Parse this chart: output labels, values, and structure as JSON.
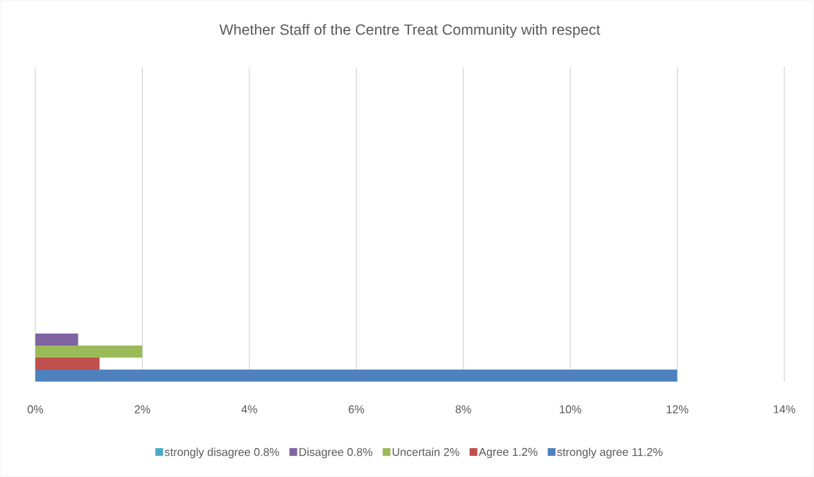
{
  "chart_data": {
    "type": "bar",
    "orientation": "horizontal",
    "title": "Whether Staff of the Centre Treat Community with respect",
    "categories": [
      null
    ],
    "series": [
      {
        "name": "strongly disagree 0.8%",
        "color": "#4bacc6",
        "values": [
          null
        ]
      },
      {
        "name": "Disagree 0.8%",
        "color": "#8064a2",
        "values": [
          0.8
        ]
      },
      {
        "name": "Uncertain 2%",
        "color": "#9bbb59",
        "values": [
          2
        ]
      },
      {
        "name": "Agree 1.2%",
        "color": "#c0504d",
        "values": [
          1.2
        ]
      },
      {
        "name": "strongly agree 11.2%",
        "color": "#4f81bd",
        "values": [
          12
        ]
      }
    ],
    "xlim": [
      0,
      14
    ],
    "xticks": [
      {
        "value": 0,
        "label": "0%"
      },
      {
        "value": 2,
        "label": "2%"
      },
      {
        "value": 4,
        "label": "4%"
      },
      {
        "value": 6,
        "label": "6%"
      },
      {
        "value": 8,
        "label": "8%"
      },
      {
        "value": 10,
        "label": "10%"
      },
      {
        "value": 12,
        "label": "12%"
      },
      {
        "value": 14,
        "label": "14%"
      }
    ],
    "grid": "x",
    "legend": "bottom"
  }
}
